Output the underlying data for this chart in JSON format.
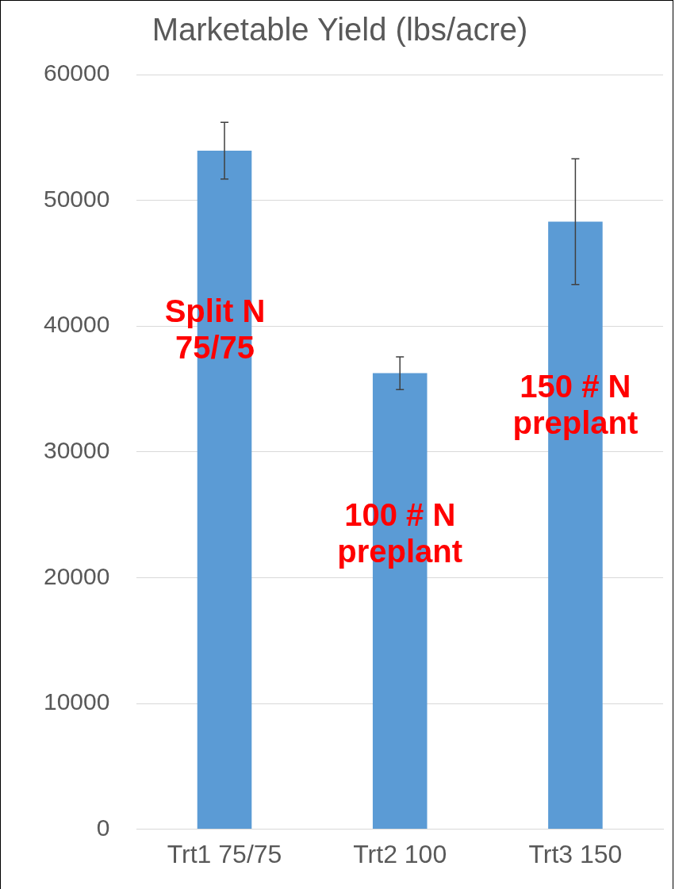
{
  "chart_data": {
    "type": "bar",
    "title": "Marketable Yield (lbs/acre)",
    "categories": [
      "Trt1 75/75",
      "Trt2 100",
      "Trt3 150"
    ],
    "values": [
      53950,
      36260,
      48300
    ],
    "errors": [
      2250,
      1300,
      5000
    ],
    "color": "#5b9bd5",
    "ylim": [
      0,
      60000
    ],
    "yticks": [
      0,
      10000,
      20000,
      30000,
      40000,
      50000,
      60000
    ],
    "grid": "y",
    "legend": false,
    "annotations": [
      "Split N\n75/75",
      "100 # N\npreplant",
      "150 # N\npreplant"
    ]
  }
}
